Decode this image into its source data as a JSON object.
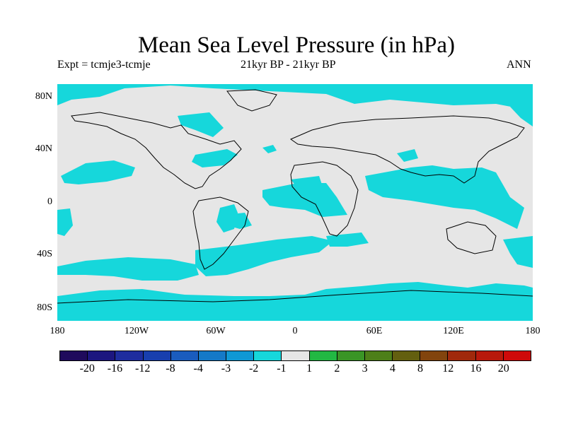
{
  "title": "Mean Sea Level Pressure (in hPa)",
  "subtitle_left": "Expt = tcmje3-tcmje",
  "subtitle_center": "21kyr BP - 21kyr BP",
  "subtitle_right": "ANN",
  "lat_labels": [
    "80N",
    "40N",
    "0",
    "40S",
    "80S"
  ],
  "lon_labels": [
    "180",
    "120W",
    "60W",
    "0",
    "60E",
    "120E",
    "180"
  ],
  "colorbar": {
    "labels": [
      "-20",
      "-16",
      "-12",
      "-8",
      "-4",
      "-3",
      "-2",
      "-1",
      "1",
      "2",
      "3",
      "4",
      "8",
      "12",
      "16",
      "20"
    ],
    "colors": [
      "#1f0b5c",
      "#1c167f",
      "#1e2d9e",
      "#183fae",
      "#1a5cbe",
      "#1579c7",
      "#0f98d5",
      "#16d7db",
      "#e6e6e6",
      "#22b843",
      "#3a9526",
      "#4d7f19",
      "#635f0f",
      "#82440d",
      "#a0290c",
      "#b8190c",
      "#cf0a0a"
    ]
  },
  "colors": {
    "ocean_neutral": "#e6e6e6",
    "negative_anomaly": "#16d7db"
  }
}
